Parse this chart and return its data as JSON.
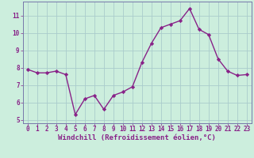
{
  "x": [
    0,
    1,
    2,
    3,
    4,
    5,
    6,
    7,
    8,
    9,
    10,
    11,
    12,
    13,
    14,
    15,
    16,
    17,
    18,
    19,
    20,
    21,
    22,
    23
  ],
  "y": [
    7.9,
    7.7,
    7.7,
    7.8,
    7.6,
    5.3,
    6.2,
    6.4,
    5.6,
    6.4,
    6.6,
    6.9,
    8.3,
    9.4,
    10.3,
    10.5,
    10.7,
    11.4,
    10.2,
    9.9,
    8.5,
    7.8,
    7.55,
    7.6
  ],
  "line_color": "#882288",
  "marker": "D",
  "marker_size": 2.2,
  "bg_color": "#cceedd",
  "grid_color": "#aacccc",
  "xlabel": "Windchill (Refroidissement éolien,°C)",
  "ylim": [
    4.8,
    11.8
  ],
  "xlim": [
    -0.5,
    23.5
  ],
  "yticks": [
    5,
    6,
    7,
    8,
    9,
    10,
    11
  ],
  "xticks": [
    0,
    1,
    2,
    3,
    4,
    5,
    6,
    7,
    8,
    9,
    10,
    11,
    12,
    13,
    14,
    15,
    16,
    17,
    18,
    19,
    20,
    21,
    22,
    23
  ],
  "tick_label_fontsize": 5.5,
  "xlabel_fontsize": 6.5,
  "line_width": 1.0,
  "spine_color": "#7777aa",
  "text_color": "#882288"
}
